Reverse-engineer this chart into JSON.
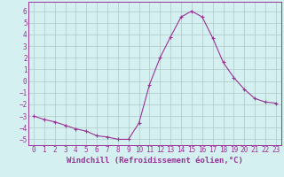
{
  "x": [
    0,
    1,
    2,
    3,
    4,
    5,
    6,
    7,
    8,
    9,
    10,
    11,
    12,
    13,
    14,
    15,
    16,
    17,
    18,
    19,
    20,
    21,
    22,
    23
  ],
  "y": [
    -3.0,
    -3.3,
    -3.5,
    -3.8,
    -4.1,
    -4.3,
    -4.7,
    -4.8,
    -5.0,
    -5.0,
    -3.6,
    -0.3,
    2.0,
    3.8,
    5.5,
    6.0,
    5.5,
    3.7,
    1.6,
    0.3,
    -0.7,
    -1.5,
    -1.8,
    -1.9
  ],
  "line_color": "#993399",
  "marker": "+",
  "background_color": "#d4f0f0",
  "grid_color": "#b0c8c8",
  "axis_color": "#993399",
  "xlabel": "Windchill (Refroidissement éolien,°C)",
  "xlim_min": -0.5,
  "xlim_max": 23.5,
  "ylim_min": -5.5,
  "ylim_max": 6.8,
  "yticks": [
    -5,
    -4,
    -3,
    -2,
    -1,
    0,
    1,
    2,
    3,
    4,
    5,
    6
  ],
  "xticks": [
    0,
    1,
    2,
    3,
    4,
    5,
    6,
    7,
    8,
    9,
    10,
    11,
    12,
    13,
    14,
    15,
    16,
    17,
    18,
    19,
    20,
    21,
    22,
    23
  ],
  "tick_fontsize": 5.5,
  "xlabel_fontsize": 6.5,
  "linewidth": 0.8,
  "markersize": 3
}
